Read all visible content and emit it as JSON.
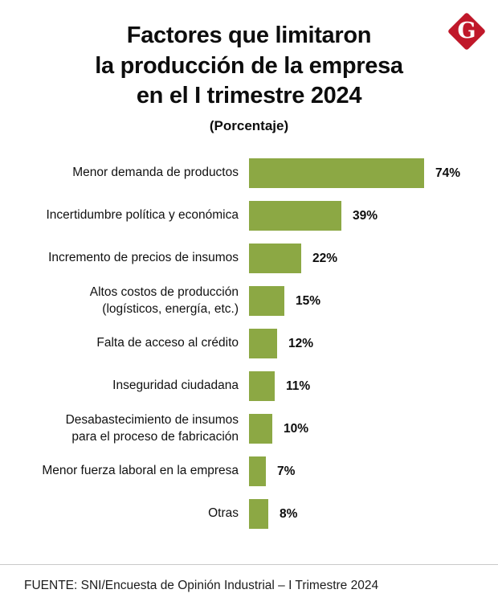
{
  "header": {
    "title_lines": [
      "Factores que limitaron",
      "la producción de la empresa",
      "en el I trimestre 2024"
    ],
    "subtitle": "(Porcentaje)",
    "logo_letter": "G",
    "logo_color": "#c0182a"
  },
  "chart_data": {
    "type": "bar",
    "orientation": "horizontal",
    "title": "Factores que limitaron la producción de la empresa en el I trimestre 2024",
    "subtitle": "(Porcentaje)",
    "unit": "%",
    "bar_color": "#8ca844",
    "xlim": [
      0,
      80
    ],
    "grid": false,
    "legend": "none",
    "categories": [
      "Menor demanda de productos",
      "Incertidumbre política y económica",
      "Incremento de precios de insumos",
      "Altos costos de producción\n(logísticos, energía, etc.)",
      "Falta de acceso al crédito",
      "Inseguridad ciudadana",
      "Desabastecimiento de insumos\npara el proceso de fabricación",
      "Menor fuerza laboral en la empresa",
      "Otras"
    ],
    "values": [
      74,
      39,
      22,
      15,
      12,
      11,
      10,
      7,
      8
    ],
    "value_labels": [
      "74%",
      "39%",
      "22%",
      "15%",
      "12%",
      "11%",
      "10%",
      "7%",
      "8%"
    ]
  },
  "footer": {
    "source": "FUENTE: SNI/Encuesta de Opinión Industrial – I Trimestre 2024"
  }
}
